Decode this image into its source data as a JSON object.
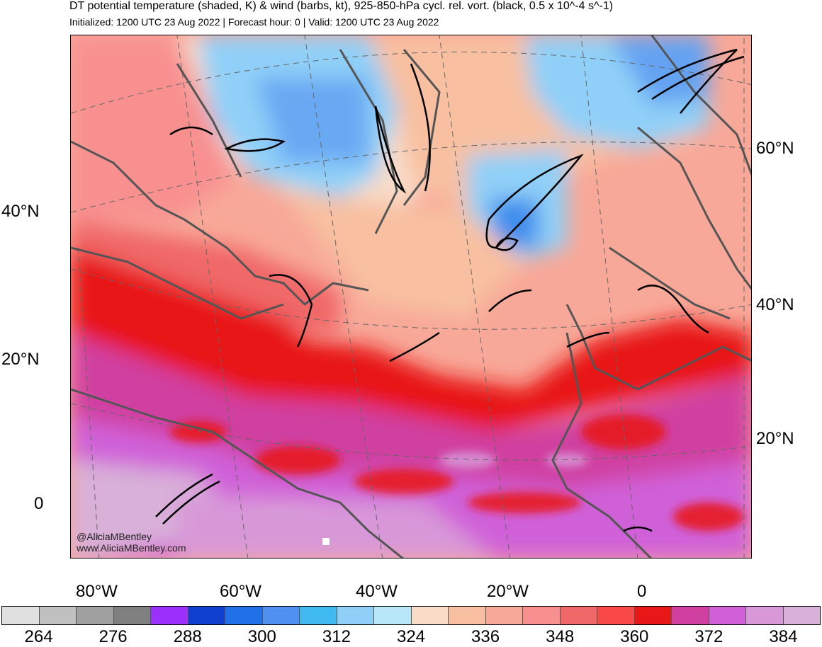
{
  "header": {
    "title": "DT potential temperature (shaded, K) & wind (barbs, kt), 925-850-hPa cycl. rel. vort. (black, 0.5 x 10^-4 s^-1)",
    "subtitle": "Initialized: 1200 UTC 23 Aug 2022 | Forecast hour: 0 | Valid: 1200 UTC 23 Aug 2022"
  },
  "map": {
    "left_lat_labels": [
      "40°N",
      "20°N",
      "0"
    ],
    "right_lat_labels": [
      "60°N",
      "40°N",
      "20°N"
    ],
    "lon_labels": [
      "80°W",
      "60°W",
      "40°W",
      "20°W",
      "0"
    ],
    "credit": [
      "@AliciaMBentley",
      "www.AliciaMBentley.com"
    ]
  },
  "colorbar": {
    "colors": [
      "#e0e0e0",
      "#c0c0c0",
      "#a0a0a0",
      "#808080",
      "#9b30ff",
      "#1040d0",
      "#2070e8",
      "#5090f0",
      "#40b8f0",
      "#90d0f8",
      "#b8e8f8",
      "#f8dcc8",
      "#f8c0a0",
      "#f8a898",
      "#f89090",
      "#f06868",
      "#f84848",
      "#e81818",
      "#d040a0",
      "#d060d8",
      "#d898d8",
      "#d8b0d8"
    ],
    "labels": [
      "264",
      "276",
      "288",
      "300",
      "312",
      "324",
      "336",
      "348",
      "360",
      "372",
      "384"
    ]
  }
}
